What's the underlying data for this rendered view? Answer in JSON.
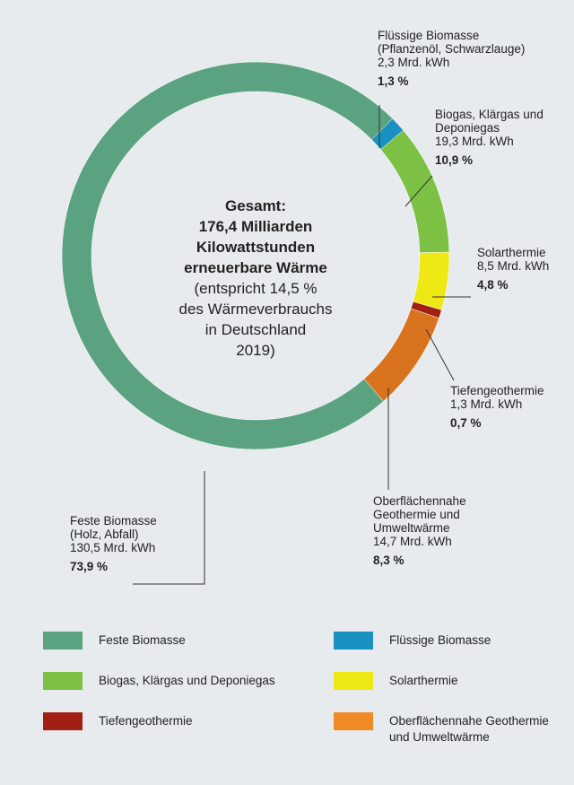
{
  "chart_data": {
    "type": "donut",
    "center_title": [
      "Gesamt:",
      "176,4 Milliarden",
      "Kilowattstunden",
      "erneuerbare Wärme"
    ],
    "center_note": [
      "(entspricht 14,5 %",
      "des Wärmeverbrauchs",
      "in Deutschland",
      "2019)"
    ],
    "categories": [
      "Feste Biomasse",
      "Flüssige Biomasse",
      "Biogas, Klärgas und Deponiegas",
      "Solarthermie",
      "Tiefengeothermie",
      "Oberflächennahe Geothermie und Umweltwärme"
    ],
    "subtitles": [
      "(Holz, Abfall)",
      "(Pflanzenöl, Schwarzlauge)",
      null,
      null,
      null,
      null
    ],
    "amounts": [
      130.5,
      2.3,
      19.3,
      8.5,
      1.3,
      14.7
    ],
    "amount_labels": [
      "130,5 Mrd. kWh",
      "2,3 Mrd. kWh",
      "19,3 Mrd. kWh",
      "8,5 Mrd. kWh",
      "1,3 Mrd. kWh",
      "14,7 Mrd. kWh"
    ],
    "values": [
      73.9,
      1.3,
      10.9,
      4.8,
      0.7,
      8.3
    ],
    "value_labels": [
      "73,9 %",
      "1,3 %",
      "10,9 %",
      "4,8 %",
      "0,7 %",
      "8,3 %"
    ],
    "colors": [
      "#5ba380",
      "#1b91c1",
      "#7cc143",
      "#eee815",
      "#a11f14",
      "#d9731d"
    ],
    "legend_colors": [
      "#5ba380",
      "#1b91c1",
      "#7cc143",
      "#eee815",
      "#a11f14",
      "#f08a24"
    ]
  }
}
